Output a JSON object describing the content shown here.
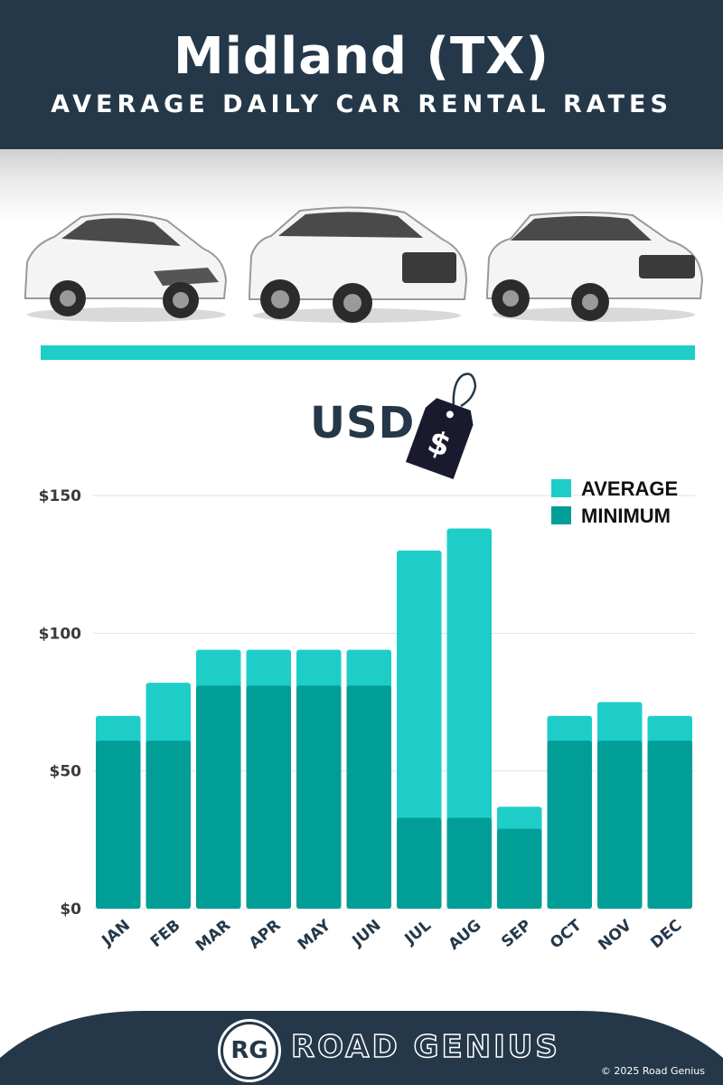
{
  "header": {
    "title": "Midland (TX)",
    "subtitle": "AVERAGE DAILY CAR RENTAL RATES"
  },
  "currency": {
    "label": "USD",
    "tag_symbol": "$"
  },
  "colors": {
    "navy": "#24384a",
    "average": "#1ecdc8",
    "minimum": "#009e97",
    "rule": "#1ecdc8"
  },
  "chart_data": {
    "type": "bar",
    "stacking": "overlay",
    "categories": [
      "JAN",
      "FEB",
      "MAR",
      "APR",
      "MAY",
      "JUN",
      "JUL",
      "AUG",
      "SEP",
      "OCT",
      "NOV",
      "DEC"
    ],
    "series": [
      {
        "name": "AVERAGE",
        "color": "#1ecdc8",
        "values": [
          70,
          82,
          94,
          94,
          94,
          94,
          130,
          138,
          37,
          70,
          75,
          70
        ]
      },
      {
        "name": "MINIMUM",
        "color": "#009e97",
        "values": [
          61,
          61,
          81,
          81,
          81,
          81,
          33,
          33,
          29,
          61,
          61,
          61
        ]
      }
    ],
    "yticks": [
      "$0",
      "$50",
      "$100",
      "$150"
    ],
    "ylim": [
      0,
      150
    ],
    "grid": true,
    "legend_position": "top-right"
  },
  "footer": {
    "logo_initials": "RG",
    "brand": "ROAD GENIUS",
    "copyright": "© 2025 Road Genius"
  }
}
